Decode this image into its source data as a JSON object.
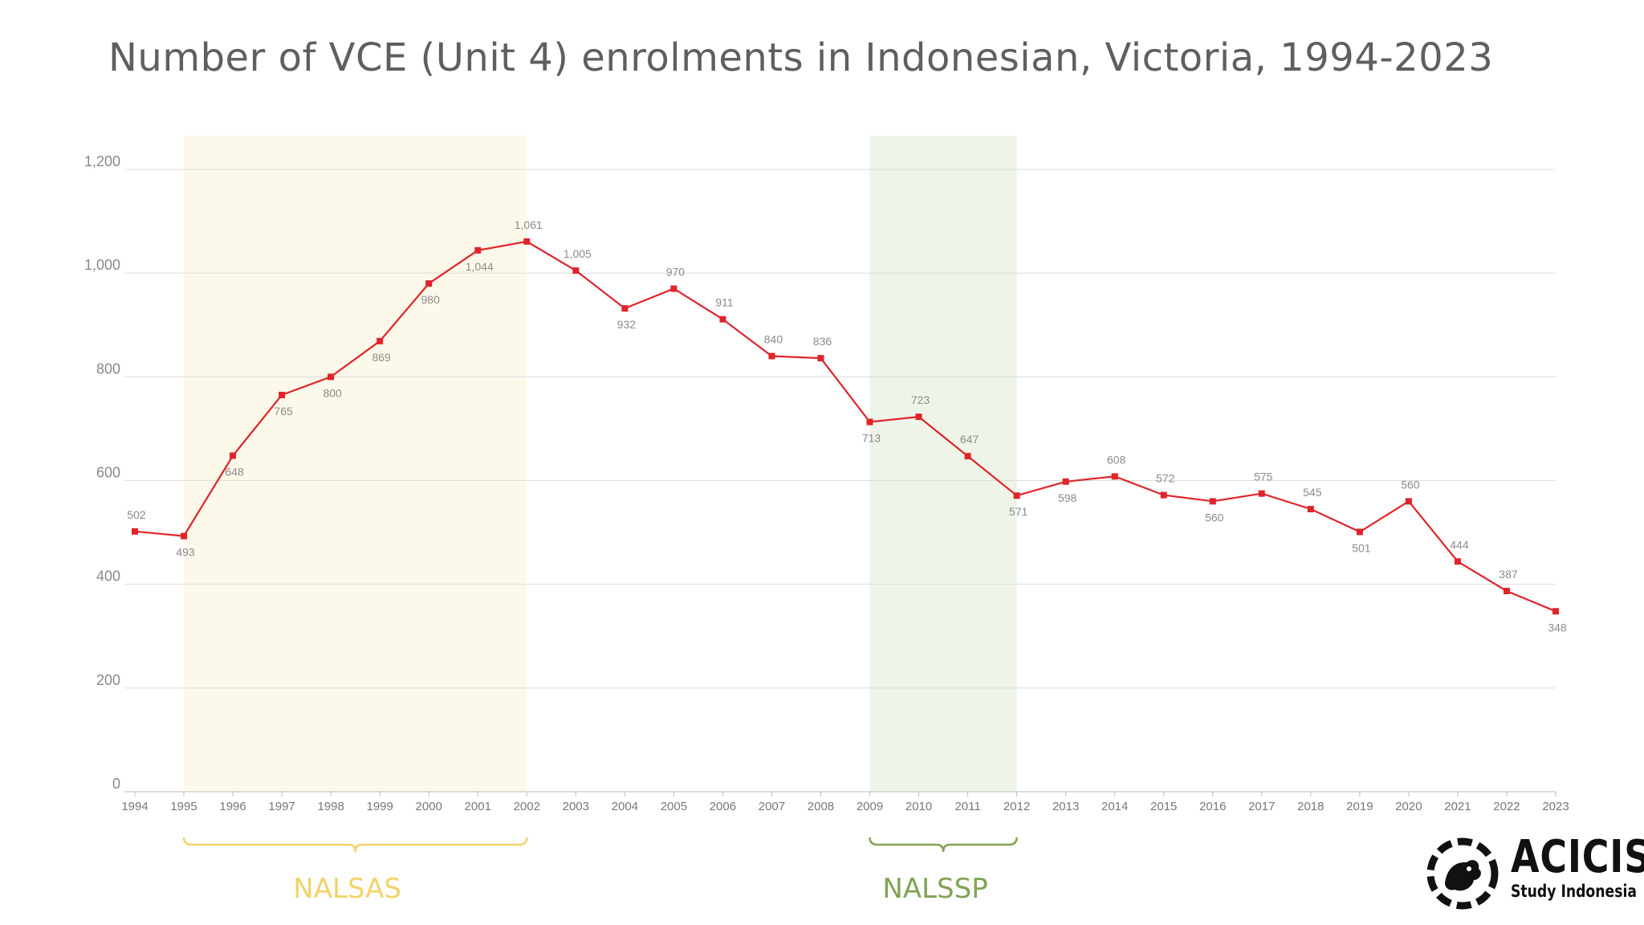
{
  "title": "Number of VCE (Unit 4) enrolments in Indonesian, Victoria, 1994-2023",
  "colors": {
    "line": "#e0242a",
    "grid": "#dcdcdc",
    "nalsas_fill": "#fdf9ea",
    "nalsas_text": "#f2d36b",
    "nalssp_fill": "#eef5e8",
    "nalssp_text": "#7fa452"
  },
  "chart_data": {
    "type": "line",
    "title": "Number of VCE (Unit 4) enrolments in Indonesian, Victoria, 1994-2023",
    "xlabel": "",
    "ylabel": "",
    "ylim": [
      0,
      1200
    ],
    "yticks": [
      0,
      200,
      400,
      600,
      800,
      1000,
      1200
    ],
    "ytick_labels": [
      "0",
      "200",
      "400",
      "600",
      "800",
      "1,000",
      "1,200"
    ],
    "grid": true,
    "x": [
      1994,
      1995,
      1996,
      1997,
      1998,
      1999,
      2000,
      2001,
      2002,
      2003,
      2004,
      2005,
      2006,
      2007,
      2008,
      2009,
      2010,
      2011,
      2012,
      2013,
      2014,
      2015,
      2016,
      2017,
      2018,
      2019,
      2020,
      2021,
      2022,
      2023
    ],
    "values": [
      502,
      493,
      648,
      765,
      800,
      869,
      980,
      1044,
      1061,
      1005,
      932,
      970,
      911,
      840,
      836,
      713,
      723,
      647,
      571,
      598,
      608,
      572,
      560,
      575,
      545,
      501,
      560,
      444,
      387,
      348
    ],
    "value_labels": [
      "502",
      "493",
      "648",
      "765",
      "800",
      "869",
      "980",
      "1,044",
      "1,061",
      "1,005",
      "932",
      "970",
      "911",
      "840",
      "836",
      "713",
      "723",
      "647",
      "571",
      "598",
      "608",
      "572",
      "560",
      "575",
      "545",
      "501",
      "560",
      "444",
      "387",
      "348"
    ],
    "label_position": [
      "above",
      "below",
      "below",
      "below",
      "below",
      "below",
      "below",
      "below",
      "above",
      "above",
      "below",
      "above",
      "above",
      "above",
      "above",
      "below",
      "above",
      "above",
      "below",
      "below",
      "above",
      "above",
      "below",
      "above",
      "above",
      "below",
      "above",
      "above",
      "above",
      "below"
    ],
    "shaded_periods": [
      {
        "label": "NALSAS",
        "start": 1995,
        "end": 2002
      },
      {
        "label": "NALSSP",
        "start": 2009,
        "end": 2012
      }
    ]
  },
  "logo": {
    "name": "ACICIS",
    "subtitle": "Study Indonesia"
  }
}
